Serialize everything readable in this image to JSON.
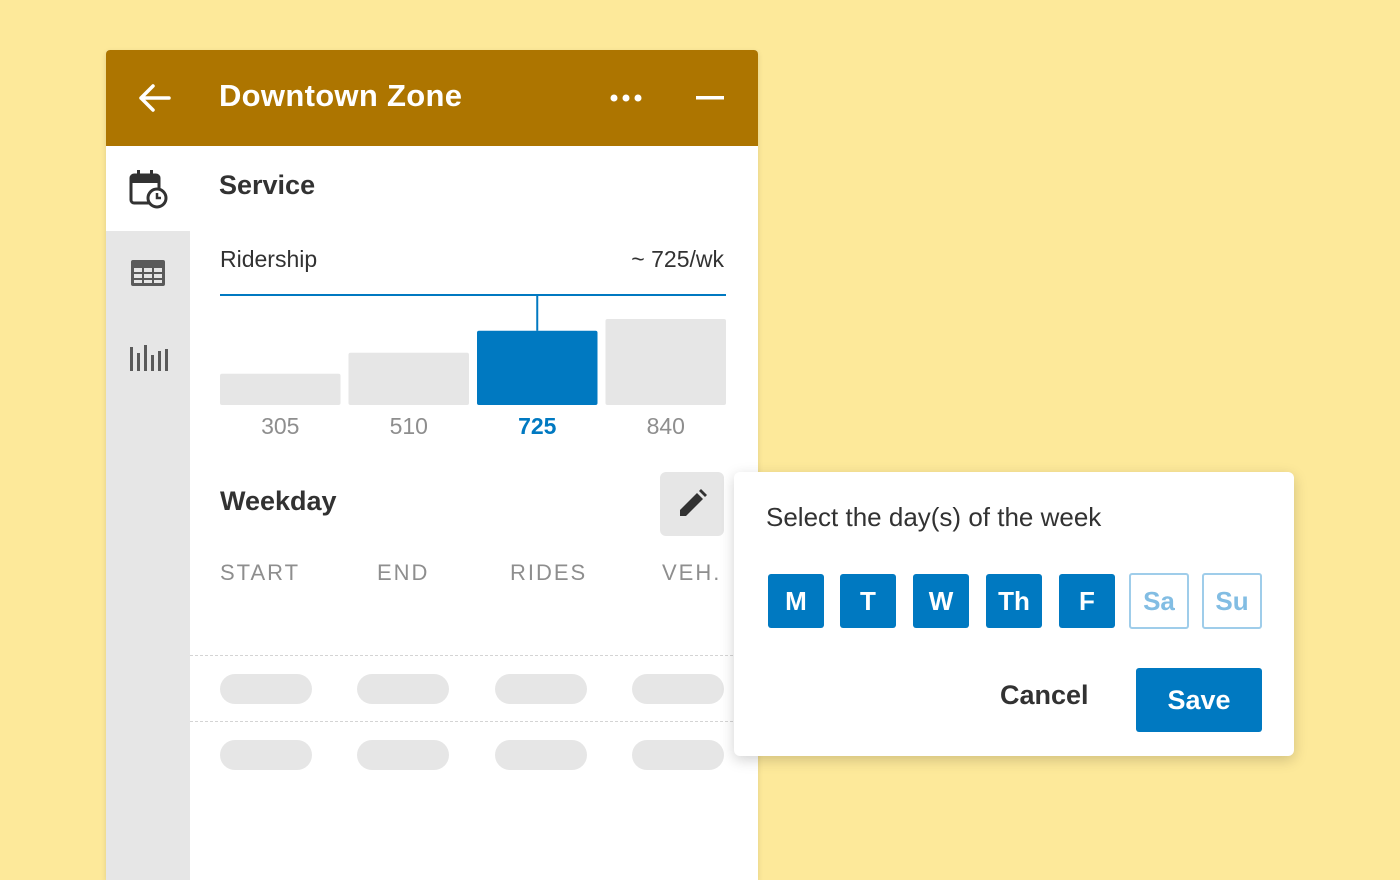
{
  "header": {
    "title": "Downtown Zone",
    "back_icon": "arrow-left-icon",
    "more_icon": "more-horizontal-icon",
    "minimize_icon": "minimize-icon"
  },
  "rail": {
    "items": [
      {
        "icon": "calendar-clock-icon",
        "active": true
      },
      {
        "icon": "table-icon",
        "active": false
      },
      {
        "icon": "bar-chart-icon",
        "active": false
      }
    ]
  },
  "service": {
    "title": "Service",
    "ridership_label": "Ridership",
    "ridership_value": "~ 725/wk"
  },
  "chart_data": {
    "type": "bar",
    "categories": [
      "305",
      "510",
      "725",
      "840"
    ],
    "values": [
      305,
      510,
      725,
      840
    ],
    "selected_index": 2,
    "colors": {
      "default": "#e6e6e6",
      "selected": "#0079c1",
      "label": "#8e8e8e",
      "selected_label": "#0079c1"
    }
  },
  "weekday": {
    "title": "Weekday",
    "edit_icon": "pencil-icon",
    "columns": [
      "START",
      "END",
      "RIDES",
      "VEH."
    ]
  },
  "popover": {
    "prompt": "Select the day(s) of the week",
    "days": [
      {
        "label": "M",
        "selected": true
      },
      {
        "label": "T",
        "selected": true
      },
      {
        "label": "W",
        "selected": true
      },
      {
        "label": "Th",
        "selected": true
      },
      {
        "label": "F",
        "selected": true
      },
      {
        "label": "Sa",
        "selected": false
      },
      {
        "label": "Su",
        "selected": false
      }
    ],
    "cancel_label": "Cancel",
    "save_label": "Save"
  },
  "colors": {
    "background": "#fde99a",
    "header": "#ad7500",
    "accent": "#0079c1"
  }
}
